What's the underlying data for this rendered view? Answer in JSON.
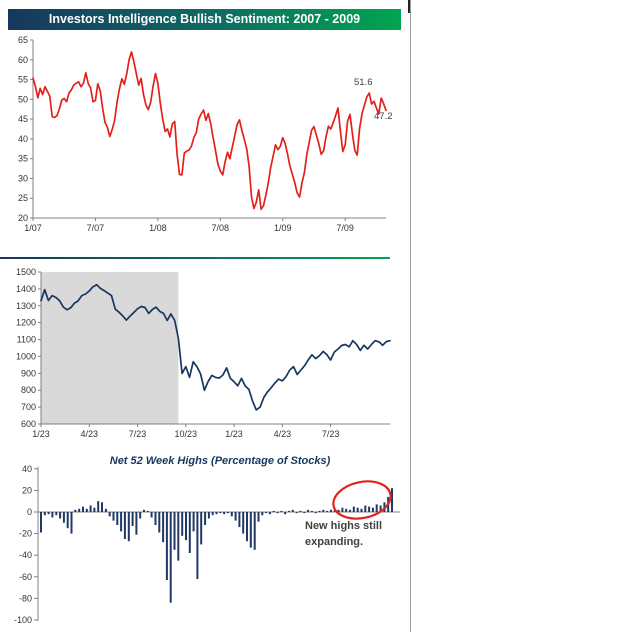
{
  "titlebar": {
    "text": "Investors Intelligence Bullish Sentiment: 2007 - 2009"
  },
  "colors": {
    "banner_left": "#17375E",
    "banner_right": "#00A550",
    "sentiment_line": "#E32119",
    "index_line": "#17375E",
    "bars": "#1F3864",
    "shading": "#D9D9D9",
    "axis": "#808080",
    "ellipse": "#E0231C",
    "annotation_text": "#404040"
  },
  "chart_data": [
    {
      "id": "sentiment",
      "type": "line",
      "title": "Investors Intelligence Bullish Sentiment: 2007 - 2009",
      "ylabel": "",
      "xlabel": "",
      "ylim": [
        20,
        65
      ],
      "ytick_labels": [
        "20",
        "25",
        "30",
        "35",
        "40",
        "45",
        "50",
        "55",
        "60",
        "65"
      ],
      "ytick_values": [
        20,
        25,
        30,
        35,
        40,
        45,
        50,
        55,
        60,
        65
      ],
      "xtick_labels": [
        "1/07",
        "7/07",
        "1/08",
        "7/08",
        "1/09",
        "7/09"
      ],
      "xtick_index": [
        0,
        26,
        52,
        78,
        104,
        130
      ],
      "grid": false,
      "legend": "none",
      "values": [
        55.4,
        53.3,
        50.4,
        52.8,
        51.2,
        53.2,
        52.0,
        50.8,
        45.6,
        45.4,
        45.9,
        47.6,
        49.8,
        50.2,
        49.4,
        51.6,
        52.4,
        53.6,
        54.1,
        54.4,
        53.2,
        54.0,
        56.7,
        54.0,
        52.9,
        49.4,
        49.7,
        53.9,
        52.2,
        47.8,
        44.2,
        42.9,
        40.6,
        42.4,
        44.6,
        49.2,
        52.6,
        55.2,
        53.8,
        56.4,
        60.0,
        62.0,
        59.5,
        56.5,
        53.6,
        55.3,
        51.2,
        48.6,
        47.4,
        49.3,
        53.3,
        56.5,
        54.0,
        49.0,
        45.0,
        41.9,
        42.5,
        40.5,
        43.8,
        44.4,
        36.1,
        31.0,
        30.9,
        36.4,
        36.9,
        37.2,
        38.2,
        40.4,
        41.6,
        45.0,
        46.3,
        47.3,
        44.7,
        46.4,
        43.9,
        40.3,
        37.1,
        33.6,
        31.9,
        30.9,
        34.2,
        36.6,
        35.0,
        37.9,
        40.7,
        43.6,
        44.8,
        42.1,
        39.9,
        37.5,
        33.1,
        25.3,
        22.4,
        24.0,
        27.1,
        22.2,
        23.1,
        25.8,
        28.9,
        32.8,
        35.6,
        38.5,
        37.3,
        38.1,
        40.3,
        38.9,
        36.2,
        33.2,
        31.1,
        29.0,
        26.4,
        25.3,
        28.9,
        31.5,
        36.0,
        39.1,
        42.2,
        43.1,
        40.9,
        38.8,
        36.1,
        37.0,
        40.5,
        43.2,
        42.5,
        44.1,
        45.9,
        47.8,
        42.0,
        36.8,
        38.5,
        44.5,
        46.2,
        41.3,
        37.1,
        35.9,
        42.6,
        46.4,
        48.5,
        50.6,
        51.6,
        48.8,
        49.5,
        47.8,
        46.3,
        50.3,
        48.9,
        47.2
      ],
      "annotations": [
        {
          "text": "51.6"
        },
        {
          "text": "47.2"
        }
      ]
    },
    {
      "id": "stock_index",
      "type": "line",
      "title": "",
      "ylabel": "",
      "xlabel": "",
      "ylim": [
        600,
        1500
      ],
      "ytick_labels": [
        "600",
        "700",
        "800",
        "900",
        "1000",
        "1100",
        "1200",
        "1300",
        "1400",
        "1500"
      ],
      "ytick_values": [
        600,
        700,
        800,
        900,
        1000,
        1100,
        1200,
        1300,
        1400,
        1500
      ],
      "xtick_labels": [
        "1/23",
        "4/23",
        "7/23",
        "10/23",
        "1/23",
        "4/23",
        "7/23"
      ],
      "xtick_index": [
        0,
        13,
        26,
        39,
        52,
        65,
        78
      ],
      "grid": false,
      "legend": "none",
      "shaded_band": {
        "from_index": 0,
        "to_index": 37,
        "color": "#D9D9D9"
      },
      "values": [
        1330,
        1395,
        1331,
        1360,
        1349,
        1330,
        1293,
        1276,
        1288,
        1315,
        1329,
        1360,
        1370,
        1388,
        1413,
        1425,
        1403,
        1390,
        1375,
        1360,
        1280,
        1262,
        1240,
        1215,
        1239,
        1260,
        1282,
        1296,
        1290,
        1255,
        1278,
        1292,
        1267,
        1255,
        1213,
        1252,
        1213,
        1106,
        899,
        940,
        876,
        968,
        940,
        896,
        800,
        851,
        888,
        876,
        872,
        890,
        932,
        870,
        850,
        826,
        870,
        825,
        805,
        735,
        683,
        700,
        757,
        790,
        815,
        843,
        866,
        855,
        880,
        920,
        940,
        893,
        920,
        945,
        980,
        1010,
        987,
        1005,
        1030,
        1010,
        979,
        1026,
        1044,
        1065,
        1071,
        1057,
        1093,
        1071,
        1036,
        1066,
        1044,
        1071,
        1093,
        1087,
        1066,
        1088,
        1093
      ],
      "annotations": []
    },
    {
      "id": "net_52wk_highs",
      "type": "bar",
      "title": "Net 52 Week Highs (Percentage of Stocks)",
      "ylabel": "",
      "xlabel": "",
      "ylim": [
        -100,
        40
      ],
      "ytick_labels": [
        "-100",
        "-80",
        "-60",
        "-40",
        "-20",
        "0",
        "20",
        "40"
      ],
      "ytick_values": [
        -100,
        -80,
        -60,
        -40,
        -20,
        0,
        20,
        40
      ],
      "xtick_labels": [],
      "xtick_index": [],
      "grid": false,
      "legend": "none",
      "values": [
        -19,
        -3,
        -2,
        -5,
        -3,
        -6,
        -10,
        -15,
        -20,
        2,
        3,
        5,
        3,
        6,
        4,
        10,
        9,
        3,
        -4,
        -8,
        -12,
        -18,
        -25,
        -27,
        -13,
        -21,
        -6,
        2,
        1,
        -5,
        -12,
        -19,
        -28,
        -63,
        -84,
        -35,
        -45,
        -22,
        -26,
        -38,
        -18,
        -62,
        -30,
        -12,
        -6,
        -3,
        -2,
        -1,
        -2,
        -1,
        -4,
        -8,
        -14,
        -20,
        -27,
        -33,
        -35,
        -9,
        -3,
        -1,
        -2,
        1,
        -1,
        1,
        -2,
        1,
        2,
        -1,
        1,
        -1,
        2,
        1,
        -1,
        1,
        2,
        1,
        2,
        3,
        2,
        4,
        3,
        2,
        5,
        4,
        3,
        6,
        5,
        4,
        7,
        6,
        9,
        14,
        22
      ],
      "annotations": [
        {
          "text": "New highs still"
        },
        {
          "text": "expanding."
        }
      ],
      "highlight_ellipse": true
    }
  ]
}
